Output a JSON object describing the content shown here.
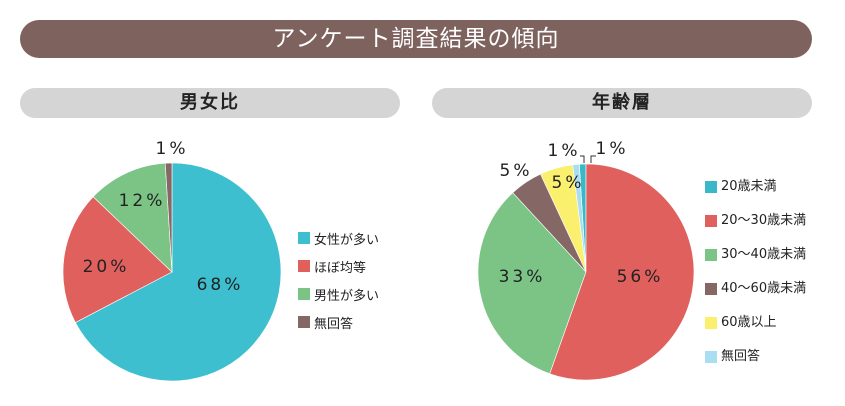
{
  "title": "アンケート調査結果の傾向",
  "chart_data": [
    {
      "type": "pie",
      "title": "男女比",
      "categories": [
        "女性が多い",
        "ほぼ均等",
        "男性が多い",
        "無回答"
      ],
      "values": [
        68,
        20,
        12,
        1
      ],
      "labels": [
        "68%",
        "20%",
        "12%",
        "1%"
      ],
      "colors": [
        "#3dbfcf",
        "#e0605e",
        "#7cc486",
        "#856866"
      ],
      "legend": "right"
    },
    {
      "type": "pie",
      "title": "年齢層",
      "categories": [
        "20歳未満",
        "20〜30歳未満",
        "30〜40歳未満",
        "40〜60歳未満",
        "60歳以上",
        "無回答"
      ],
      "values": [
        1,
        56,
        33,
        5,
        5,
        1
      ],
      "labels": [
        "1%",
        "56%",
        "33%",
        "5%",
        "5%",
        "1%"
      ],
      "colors": [
        "#3ab8c8",
        "#e0605e",
        "#7cc486",
        "#856866",
        "#fbef6e",
        "#a9def2"
      ],
      "legend": "right"
    }
  ]
}
